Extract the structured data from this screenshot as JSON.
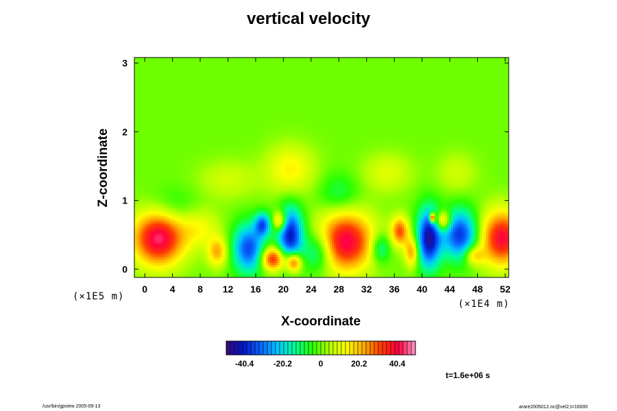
{
  "chart_data": {
    "type": "heatmap",
    "title": "vertical velocity",
    "xlabel": "X-coordinate",
    "ylabel": "Z-coordinate",
    "x_unit": "(×1E4 m)",
    "y_unit": "(×1E5 m)",
    "xlim": [
      -1.5,
      52.5
    ],
    "ylim": [
      -0.12,
      3.08
    ],
    "x_ticks": [
      "0",
      "4",
      "8",
      "12",
      "16",
      "20",
      "24",
      "28",
      "32",
      "36",
      "40",
      "44",
      "48",
      "52"
    ],
    "y_ticks": [
      "0",
      "1",
      "2",
      "3"
    ],
    "colorbar": {
      "range": [
        -50,
        50
      ],
      "ticks": [
        "-40.4",
        "-20.2",
        "0",
        "20.2",
        "40.4"
      ],
      "tick_values": [
        -40.4,
        -20.2,
        0,
        20.2,
        40.4
      ],
      "colors": [
        "#3a0a78",
        "#0018c8",
        "#0a64ff",
        "#00c8ff",
        "#00ff96",
        "#28ff00",
        "#b4ff00",
        "#ffff00",
        "#ffaa00",
        "#ff3c00",
        "#ff0040",
        "#ff9ac8"
      ]
    },
    "background_value": 0,
    "features": [
      {
        "x": 2.0,
        "z": 0.45,
        "value": 44,
        "sx": 2.6,
        "sz": 0.28
      },
      {
        "x": 51.5,
        "z": 0.45,
        "value": 40,
        "sx": 2.2,
        "sz": 0.28
      },
      {
        "x": 29.0,
        "z": 0.4,
        "value": 42,
        "sx": 2.8,
        "sz": 0.3
      },
      {
        "x": 36.8,
        "z": 0.55,
        "value": 30,
        "sx": 0.9,
        "sz": 0.15
      },
      {
        "x": 18.5,
        "z": 0.15,
        "value": 38,
        "sx": 1.2,
        "sz": 0.12
      },
      {
        "x": 21.5,
        "z": 0.1,
        "value": 36,
        "sx": 0.8,
        "sz": 0.1
      },
      {
        "x": 19.5,
        "z": 0.7,
        "value": 28,
        "sx": 0.7,
        "sz": 0.1
      },
      {
        "x": 10.5,
        "z": 0.25,
        "value": 22,
        "sx": 1.0,
        "sz": 0.15
      },
      {
        "x": 15.0,
        "z": 0.3,
        "value": -35,
        "sx": 1.6,
        "sz": 0.25
      },
      {
        "x": 17.0,
        "z": 0.65,
        "value": -30,
        "sx": 0.8,
        "sz": 0.12
      },
      {
        "x": 21.0,
        "z": 0.5,
        "value": -42,
        "sx": 1.3,
        "sz": 0.28
      },
      {
        "x": 41.0,
        "z": 0.45,
        "value": -45,
        "sx": 1.2,
        "sz": 0.3
      },
      {
        "x": 45.5,
        "z": 0.5,
        "value": -38,
        "sx": 1.8,
        "sz": 0.25
      },
      {
        "x": 25.0,
        "z": 0.25,
        "value": -20,
        "sx": 1.5,
        "sz": 0.2
      },
      {
        "x": 34.0,
        "z": 0.3,
        "value": -18,
        "sx": 1.0,
        "sz": 0.15
      },
      {
        "x": 43.0,
        "z": 0.7,
        "value": 30,
        "sx": 0.8,
        "sz": 0.1
      },
      {
        "x": 38.5,
        "z": 0.25,
        "value": 25,
        "sx": 0.7,
        "sz": 0.15
      },
      {
        "x": 8.0,
        "z": 0.6,
        "value": 12,
        "sx": 2.0,
        "sz": 0.2
      },
      {
        "x": 47.5,
        "z": 0.2,
        "value": 20,
        "sx": 1.0,
        "sz": 0.1
      },
      {
        "x": 21.0,
        "z": 1.45,
        "value": 15,
        "sx": 2.5,
        "sz": 0.25
      },
      {
        "x": 35.0,
        "z": 1.4,
        "value": 10,
        "sx": 2.5,
        "sz": 0.2
      },
      {
        "x": 12.0,
        "z": 1.3,
        "value": 8,
        "sx": 3.0,
        "sz": 0.2
      },
      {
        "x": 45.0,
        "z": 1.4,
        "value": 8,
        "sx": 2.0,
        "sz": 0.2
      },
      {
        "x": 28.0,
        "z": 1.1,
        "value": -10,
        "sx": 2.0,
        "sz": 0.2
      },
      {
        "x": 4.0,
        "z": 0.9,
        "value": -8,
        "sx": 2.5,
        "sz": 0.2
      },
      {
        "x": 41.5,
        "z": 0.75,
        "value": 55,
        "sx": 0.25,
        "sz": 0.05
      }
    ]
  },
  "footer": {
    "left": "/usr/bin/gpview 2005-09-13",
    "right": "arare2005012.nc@vel2,t=16000",
    "time": "t=1.6e+06 s"
  }
}
